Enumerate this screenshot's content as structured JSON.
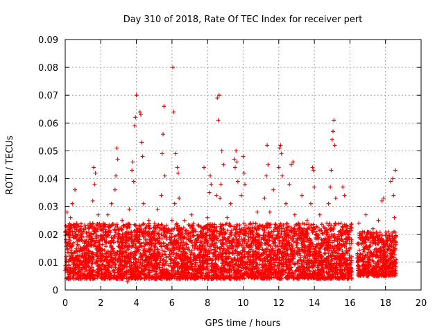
{
  "chart_data": {
    "type": "scatter",
    "title": "Day 310 of 2018, Rate Of TEC Index for receiver pert",
    "xlabel": "GPS time / hours",
    "ylabel": "ROTI / TECUs",
    "xlim": [
      0,
      20
    ],
    "ylim": [
      0,
      0.09
    ],
    "x_ticks": [
      0,
      2,
      4,
      6,
      8,
      10,
      12,
      14,
      16,
      18,
      20
    ],
    "x_tick_labels": [
      "0",
      "2",
      "4",
      "6",
      "8",
      "10",
      "12",
      "14",
      "16",
      "18",
      "20"
    ],
    "y_ticks": [
      0,
      0.01,
      0.02,
      0.03,
      0.04,
      0.05,
      0.06,
      0.07,
      0.08,
      0.09
    ],
    "y_tick_labels": [
      "0",
      "0.01",
      "0.02",
      "0.03",
      "0.04",
      "0.05",
      "0.06",
      "0.07",
      "0.08",
      "0.09"
    ],
    "grid": true,
    "marker": "plus",
    "series": [
      {
        "name": "ROTI",
        "color": "#ff0000",
        "points": [
          [
            0.05,
            0.012
          ],
          [
            0.1,
            0.028
          ],
          [
            0.15,
            0.017
          ],
          [
            0.2,
            0.009
          ],
          [
            0.25,
            0.022
          ],
          [
            0.3,
            0.026
          ],
          [
            0.35,
            0.011
          ],
          [
            0.4,
            0.031
          ],
          [
            0.45,
            0.019
          ],
          [
            0.5,
            0.007
          ],
          [
            0.55,
            0.036
          ],
          [
            0.6,
            0.014
          ],
          [
            0.65,
            0.024
          ],
          [
            0.7,
            0.009
          ],
          [
            0.8,
            0.018
          ],
          [
            0.9,
            0.012
          ],
          [
            1.0,
            0.021
          ],
          [
            1.1,
            0.008
          ],
          [
            1.2,
            0.016
          ],
          [
            1.3,
            0.011
          ],
          [
            1.4,
            0.024
          ],
          [
            1.5,
            0.007
          ],
          [
            1.55,
            0.032
          ],
          [
            1.6,
            0.044
          ],
          [
            1.65,
            0.038
          ],
          [
            1.7,
            0.042
          ],
          [
            1.75,
            0.019
          ],
          [
            1.8,
            0.013
          ],
          [
            1.85,
            0.027
          ],
          [
            1.9,
            0.009
          ],
          [
            2.0,
            0.015
          ],
          [
            2.1,
            0.022
          ],
          [
            2.2,
            0.018
          ],
          [
            2.3,
            0.012
          ],
          [
            2.4,
            0.027
          ],
          [
            2.5,
            0.009
          ],
          [
            2.6,
            0.031
          ],
          [
            2.7,
            0.014
          ],
          [
            2.8,
            0.036
          ],
          [
            2.85,
            0.041
          ],
          [
            2.9,
            0.051
          ],
          [
            2.95,
            0.047
          ],
          [
            3.0,
            0.019
          ],
          [
            3.1,
            0.011
          ],
          [
            3.2,
            0.025
          ],
          [
            3.3,
            0.006
          ],
          [
            3.4,
            0.016
          ],
          [
            3.5,
            0.003
          ],
          [
            3.6,
            0.029
          ],
          [
            3.7,
            0.012
          ],
          [
            3.75,
            0.043
          ],
          [
            3.8,
            0.046
          ],
          [
            3.85,
            0.039
          ],
          [
            3.9,
            0.059
          ],
          [
            3.95,
            0.062
          ],
          [
            4.0,
            0.07
          ],
          [
            4.05,
            0.021
          ],
          [
            4.1,
            0.014
          ],
          [
            4.15,
            0.009
          ],
          [
            4.2,
            0.064
          ],
          [
            4.25,
            0.063
          ],
          [
            4.3,
            0.053
          ],
          [
            4.35,
            0.048
          ],
          [
            4.4,
            0.031
          ],
          [
            4.5,
            0.018
          ],
          [
            4.6,
            0.011
          ],
          [
            4.7,
            0.025
          ],
          [
            4.8,
            0.015
          ],
          [
            4.9,
            0.008
          ],
          [
            5.0,
            0.021
          ],
          [
            5.1,
            0.012
          ],
          [
            5.2,
            0.029
          ],
          [
            5.3,
            0.017
          ],
          [
            5.4,
            0.034
          ],
          [
            5.45,
            0.049
          ],
          [
            5.5,
            0.056
          ],
          [
            5.55,
            0.066
          ],
          [
            5.6,
            0.041
          ],
          [
            5.7,
            0.016
          ],
          [
            5.8,
            0.022
          ],
          [
            5.9,
            0.011
          ],
          [
            6.0,
            0.025
          ],
          [
            6.05,
            0.08
          ],
          [
            6.1,
            0.064
          ],
          [
            6.15,
            0.031
          ],
          [
            6.2,
            0.049
          ],
          [
            6.3,
            0.044
          ],
          [
            6.35,
            0.042
          ],
          [
            6.4,
            0.033
          ],
          [
            6.5,
            0.018
          ],
          [
            6.6,
            0.012
          ],
          [
            6.7,
            0.025
          ],
          [
            6.8,
            0.009
          ],
          [
            6.9,
            0.02
          ],
          [
            7.0,
            0.014
          ],
          [
            7.1,
            0.027
          ],
          [
            7.2,
            0.011
          ],
          [
            7.3,
            0.018
          ],
          [
            7.4,
            0.006
          ],
          [
            7.5,
            0.023
          ],
          [
            7.6,
            0.016
          ],
          [
            7.7,
            0.012
          ],
          [
            7.8,
            0.044
          ],
          [
            7.9,
            0.019
          ],
          [
            8.0,
            0.026
          ],
          [
            8.1,
            0.035
          ],
          [
            8.15,
            0.041
          ],
          [
            8.2,
            0.038
          ],
          [
            8.3,
            0.013
          ],
          [
            8.4,
            0.021
          ],
          [
            8.5,
            0.034
          ],
          [
            8.55,
            0.069
          ],
          [
            8.6,
            0.061
          ],
          [
            8.65,
            0.07
          ],
          [
            8.7,
            0.033
          ],
          [
            8.75,
            0.038
          ],
          [
            8.8,
            0.05
          ],
          [
            8.9,
            0.045
          ],
          [
            9.0,
            0.018
          ],
          [
            9.1,
            0.026
          ],
          [
            9.2,
            0.012
          ],
          [
            9.3,
            0.031
          ],
          [
            9.4,
            0.016
          ],
          [
            9.5,
            0.047
          ],
          [
            9.55,
            0.044
          ],
          [
            9.6,
            0.05
          ],
          [
            9.65,
            0.046
          ],
          [
            9.7,
            0.039
          ],
          [
            9.8,
            0.021
          ],
          [
            9.9,
            0.034
          ],
          [
            10.0,
            0.048
          ],
          [
            10.05,
            0.042
          ],
          [
            10.1,
            0.038
          ],
          [
            10.2,
            0.016
          ],
          [
            10.3,
            0.011
          ],
          [
            10.4,
            0.024
          ],
          [
            10.5,
            0.008
          ],
          [
            10.6,
            0.019
          ],
          [
            10.7,
            0.013
          ],
          [
            10.8,
            0.028
          ],
          [
            10.9,
            0.017
          ],
          [
            11.0,
            0.023
          ],
          [
            11.1,
            0.009
          ],
          [
            11.2,
            0.033
          ],
          [
            11.3,
            0.041
          ],
          [
            11.35,
            0.052
          ],
          [
            11.4,
            0.045
          ],
          [
            11.5,
            0.028
          ],
          [
            11.6,
            0.014
          ],
          [
            11.7,
            0.036
          ],
          [
            11.8,
            0.005
          ],
          [
            11.9,
            0.022
          ],
          [
            12.0,
            0.044
          ],
          [
            12.05,
            0.051
          ],
          [
            12.1,
            0.052
          ],
          [
            12.15,
            0.049
          ],
          [
            12.2,
            0.041
          ],
          [
            12.3,
            0.018
          ],
          [
            12.4,
            0.031
          ],
          [
            12.5,
            0.013
          ],
          [
            12.6,
            0.038
          ],
          [
            12.7,
            0.045
          ],
          [
            12.8,
            0.046
          ],
          [
            12.9,
            0.027
          ],
          [
            13.0,
            0.016
          ],
          [
            13.1,
            0.024
          ],
          [
            13.2,
            0.011
          ],
          [
            13.3,
            0.034
          ],
          [
            13.4,
            0.019
          ],
          [
            13.5,
            0.014
          ],
          [
            13.6,
            0.025
          ],
          [
            13.7,
            0.008
          ],
          [
            13.8,
            0.031
          ],
          [
            13.9,
            0.044
          ],
          [
            13.95,
            0.043
          ],
          [
            14.0,
            0.037
          ],
          [
            14.1,
            0.021
          ],
          [
            14.2,
            0.012
          ],
          [
            14.3,
            0.027
          ],
          [
            14.4,
            0.016
          ],
          [
            14.5,
            0.009
          ],
          [
            14.6,
            0.022
          ],
          [
            14.7,
            0.015
          ],
          [
            14.8,
            0.031
          ],
          [
            14.9,
            0.037
          ],
          [
            14.95,
            0.043
          ],
          [
            15.0,
            0.054
          ],
          [
            15.05,
            0.057
          ],
          [
            15.1,
            0.061
          ],
          [
            15.15,
            0.052
          ],
          [
            15.2,
            0.033
          ],
          [
            15.3,
            0.018
          ],
          [
            15.4,
            0.011
          ],
          [
            15.5,
            0.024
          ],
          [
            15.6,
            0.037
          ],
          [
            15.7,
            0.034
          ],
          [
            15.8,
            0.015
          ],
          [
            15.9,
            0.021
          ],
          [
            16.0,
            0.009
          ],
          [
            16.1,
            0.012
          ],
          [
            16.5,
            0.024
          ],
          [
            16.6,
            0.013
          ],
          [
            16.7,
            0.019
          ],
          [
            16.8,
            0.008
          ],
          [
            16.9,
            0.027
          ],
          [
            17.0,
            0.015
          ],
          [
            17.1,
            0.011
          ],
          [
            17.3,
            0.022
          ],
          [
            17.4,
            0.017
          ],
          [
            17.5,
            0.009
          ],
          [
            17.6,
            0.025
          ],
          [
            17.7,
            0.014
          ],
          [
            17.8,
            0.032
          ],
          [
            17.9,
            0.033
          ],
          [
            18.0,
            0.012
          ],
          [
            18.1,
            0.019
          ],
          [
            18.2,
            0.008
          ],
          [
            18.3,
            0.039
          ],
          [
            18.4,
            0.04
          ],
          [
            18.45,
            0.034
          ],
          [
            18.5,
            0.026
          ],
          [
            18.55,
            0.043
          ],
          [
            18.6,
            0.011
          ]
        ]
      }
    ],
    "density_bands": [
      {
        "x": [
          0.0,
          16.1
        ],
        "y": [
          0.004,
          0.024
        ]
      },
      {
        "x": [
          16.4,
          18.6
        ],
        "y": [
          0.005,
          0.021
        ]
      }
    ]
  }
}
